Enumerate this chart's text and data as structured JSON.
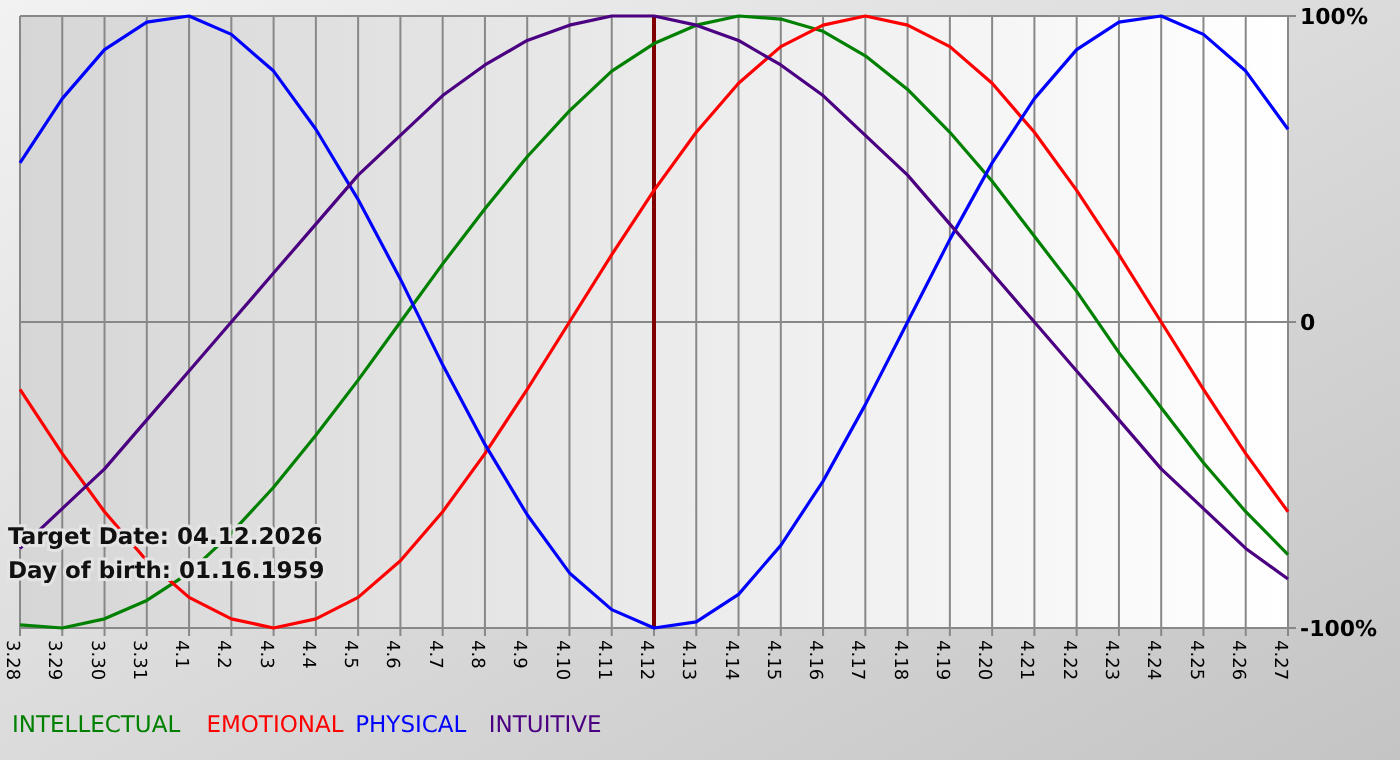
{
  "chart_data": {
    "type": "line",
    "categories": [
      "3.28",
      "3.29",
      "3.30",
      "3.31",
      "4.1",
      "4.2",
      "4.3",
      "4.4",
      "4.5",
      "4.6",
      "4.7",
      "4.8",
      "4.9",
      "4.10",
      "4.11",
      "4.12",
      "4.13",
      "4.14",
      "4.15",
      "4.16",
      "4.17",
      "4.18",
      "4.19",
      "4.20",
      "4.21",
      "4.22",
      "4.23",
      "4.24",
      "4.25",
      "4.26",
      "4.27"
    ],
    "series": [
      {
        "name": "INTELLECTUAL",
        "color": "#008000",
        "values": [
          -99,
          -100,
          -97,
          -91,
          -82,
          -69,
          -54,
          -37,
          -19,
          0,
          19,
          37,
          54,
          69,
          82,
          91,
          97,
          100,
          99,
          95,
          87,
          76,
          62,
          46,
          28,
          10,
          -10,
          -28,
          -46,
          -62,
          -76
        ]
      },
      {
        "name": "EMOTIONAL",
        "color": "#ff0000",
        "values": [
          -22,
          -43,
          -62,
          -78,
          -90,
          -97,
          -100,
          -97,
          -90,
          -78,
          -62,
          -43,
          -22,
          0,
          22,
          43,
          62,
          78,
          90,
          97,
          100,
          97,
          90,
          78,
          62,
          43,
          22,
          0,
          -22,
          -43,
          -62
        ]
      },
      {
        "name": "PHYSICAL",
        "color": "#0000ff",
        "values": [
          52,
          73,
          89,
          98,
          100,
          94,
          82,
          63,
          40,
          14,
          -14,
          -40,
          -63,
          -82,
          -94,
          -100,
          -98,
          -89,
          -73,
          -52,
          -27,
          0,
          27,
          52,
          73,
          89,
          98,
          100,
          94,
          82,
          63
        ]
      },
      {
        "name": "INTUITIVE",
        "color": "#4b0082",
        "values": [
          -74,
          -61,
          -48,
          -32,
          -16,
          0,
          16,
          32,
          48,
          61,
          74,
          84,
          92,
          97,
          100,
          100,
          97,
          92,
          84,
          74,
          61,
          48,
          32,
          16,
          0,
          -16,
          -32,
          -48,
          -61,
          -74,
          -84
        ]
      }
    ],
    "ylim": [
      -100,
      100
    ],
    "yticks": [
      {
        "value": 100,
        "label": "100%"
      },
      0,
      {
        "value": -100,
        "label": "-100%"
      }
    ],
    "grid": true,
    "legend": "bottom",
    "marker": "none",
    "line_style": "solid",
    "ref_lines": [
      {
        "axis": "x",
        "value": "4.12",
        "color": "#800000"
      }
    ],
    "annotations": [
      "Target Date: 04.12.2026",
      "Day of birth: 01.16.1959"
    ]
  }
}
